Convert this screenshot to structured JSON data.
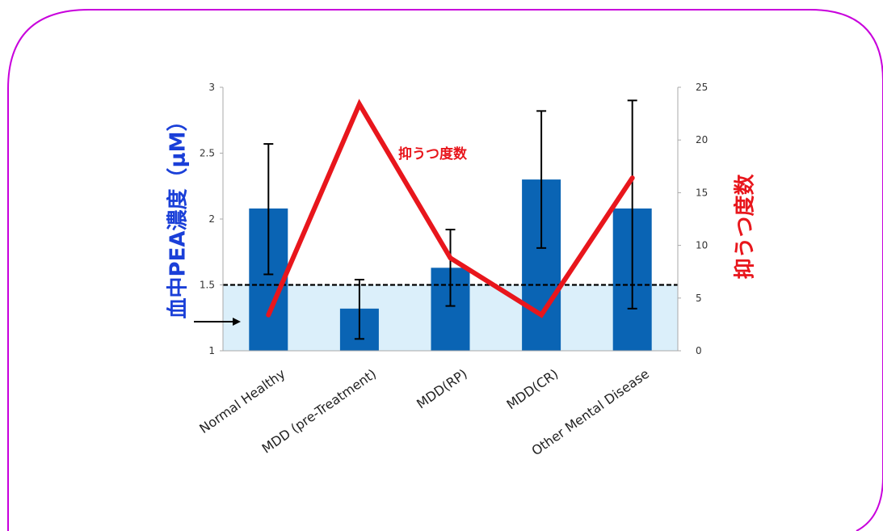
{
  "chart_data": {
    "type": "bar",
    "categories": [
      "Normal Healthy",
      "MDD (pre-Treatment)",
      "MDD(RP)",
      "MDD(CR)",
      "Other Mental Disease"
    ],
    "series": [
      {
        "values": [
          2.08,
          1.32,
          1.63,
          2.3,
          2.08
        ],
        "error_low": [
          1.58,
          1.09,
          1.34,
          1.78,
          1.32
        ],
        "error_high": [
          2.57,
          1.54,
          1.92,
          2.82,
          2.9
        ],
        "color": "#0a64b4"
      },
      {
        "name": "抑うつ度数",
        "type": "line",
        "axis": "right",
        "values": [
          3.4,
          23.4,
          8.8,
          3.4,
          16.4
        ],
        "color": "#e8161c"
      }
    ],
    "ylabel": "血中PEA濃度（μM）",
    "y2label": "抑うつ度数",
    "ylim": [
      1,
      3
    ],
    "y2lim": [
      0,
      25
    ],
    "yticks": [
      "1",
      "1.5",
      "2",
      "2.5",
      "3"
    ],
    "y2ticks": [
      "0",
      "5",
      "10",
      "15",
      "20",
      "25"
    ],
    "threshold": 1.5,
    "line_label": "抑うつ度数",
    "colors": {
      "frame": "#c800dc",
      "bar": "#0a64b4",
      "line": "#e8161c",
      "shade": "#dbeffa",
      "left_label": "#1a3fd8"
    }
  }
}
